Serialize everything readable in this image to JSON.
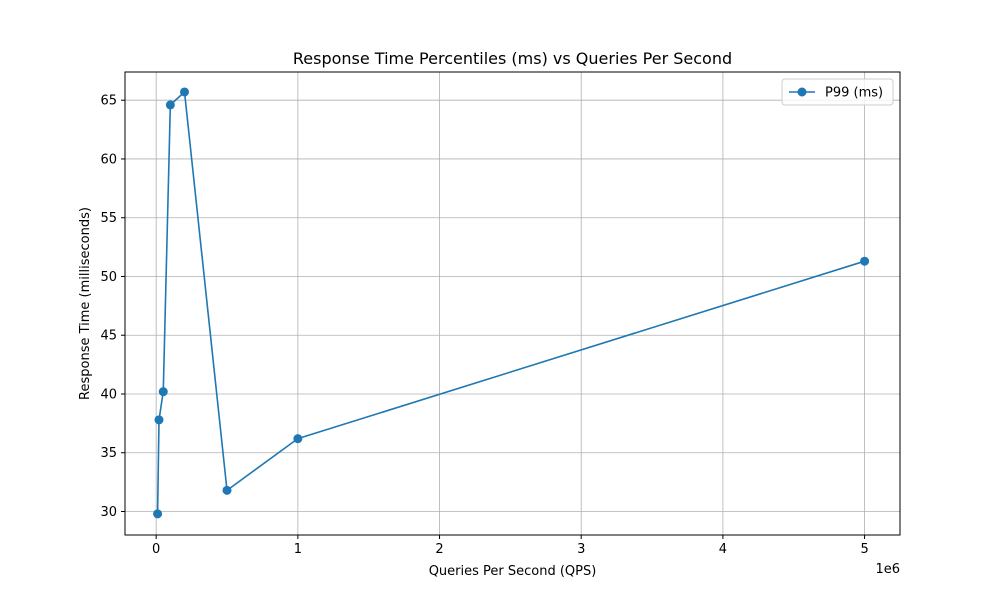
{
  "chart_data": {
    "type": "line",
    "title": "Response Time Percentiles (ms) vs Queries Per Second",
    "xlabel": "Queries Per Second (QPS)",
    "ylabel": "Response Time (milliseconds)",
    "x_offset_label": "1e6",
    "x_scale_factor": 1000000,
    "xlim": [
      -220000,
      5250000
    ],
    "ylim": [
      28.0,
      67.4
    ],
    "x_ticks": [
      0,
      1000000,
      2000000,
      3000000,
      4000000,
      5000000
    ],
    "x_tick_labels": [
      "0",
      "1",
      "2",
      "3",
      "4",
      "5"
    ],
    "y_ticks": [
      30,
      35,
      40,
      45,
      50,
      55,
      60,
      65
    ],
    "y_tick_labels": [
      "30",
      "35",
      "40",
      "45",
      "50",
      "55",
      "60",
      "65"
    ],
    "grid": true,
    "legend_position": "top-right",
    "series": [
      {
        "name": "P99 (ms)",
        "color": "#1f77b4",
        "marker": "circle",
        "x": [
          10000,
          20000,
          50000,
          100000,
          200000,
          500000,
          1000000,
          5000000
        ],
        "y": [
          29.8,
          37.8,
          40.2,
          64.6,
          65.7,
          31.8,
          36.2,
          51.3
        ]
      }
    ]
  }
}
